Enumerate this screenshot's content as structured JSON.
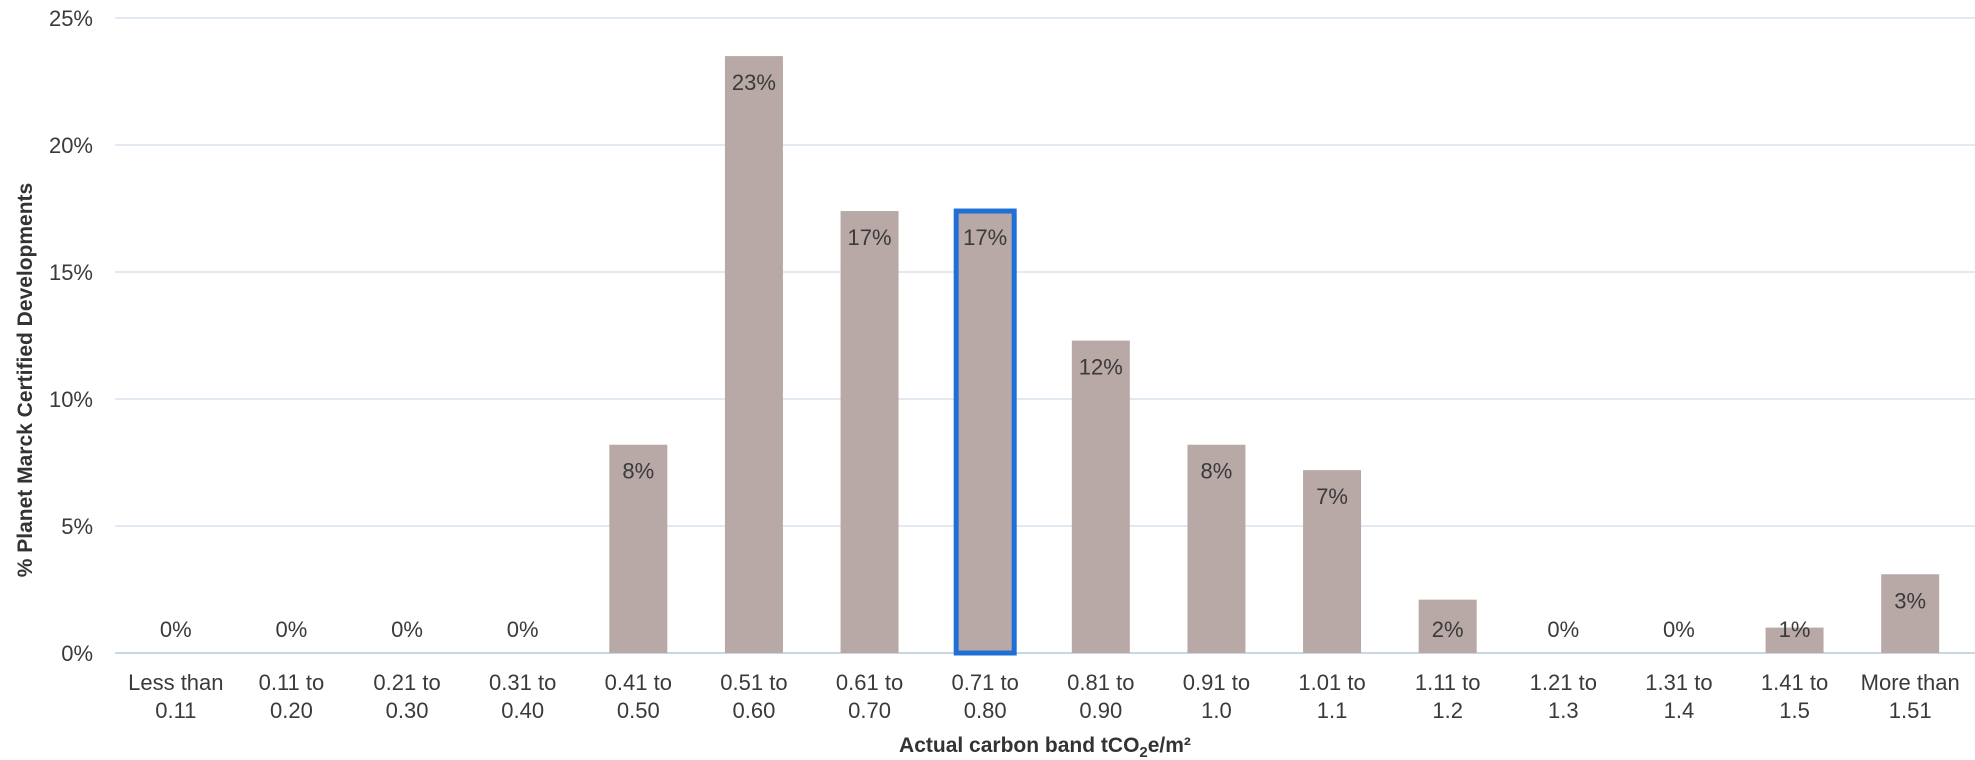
{
  "chart_data": {
    "type": "bar",
    "categories": [
      [
        "Less than",
        "0.11"
      ],
      [
        "0.11  to",
        "0.20"
      ],
      [
        "0.21  to",
        "0.30"
      ],
      [
        "0.31  to",
        "0.40"
      ],
      [
        "0.41  to",
        "0.50"
      ],
      [
        "0.51  to",
        "0.60"
      ],
      [
        "0.61  to",
        "0.70"
      ],
      [
        "0.71  to",
        "0.80"
      ],
      [
        "0.81  to",
        "0.90"
      ],
      [
        "0.91  to",
        "1.0"
      ],
      [
        "1.01  to",
        "1.1"
      ],
      [
        "1.11  to",
        "1.2"
      ],
      [
        "1.21  to",
        "1.3"
      ],
      [
        "1.31  to",
        "1.4"
      ],
      [
        "1.41  to",
        "1.5"
      ],
      [
        "More than",
        "1.51"
      ]
    ],
    "values": [
      0,
      0,
      0,
      0,
      8.2,
      23.5,
      17.4,
      17.4,
      12.3,
      8.2,
      7.2,
      2.1,
      0,
      0,
      1.0,
      3.1
    ],
    "data_labels": [
      "0%",
      "0%",
      "0%",
      "0%",
      "8%",
      "23%",
      "17%",
      "17%",
      "12%",
      "8%",
      "7%",
      "2%",
      "0%",
      "0%",
      "1%",
      "3%"
    ],
    "highlighted_index": 7,
    "ylim": [
      0,
      25
    ],
    "yticks": [
      0,
      5,
      10,
      15,
      20,
      25
    ],
    "ytick_labels": [
      "0%",
      "5%",
      "10%",
      "15%",
      "20%",
      "25%"
    ],
    "ylabel": "% Planet Marck Certified Developments",
    "xlabel_main": "Actual carbon band tCO",
    "xlabel_sub": "2",
    "xlabel_tail": "e/m²",
    "grid": true,
    "bar_color": "#b8a9a6",
    "highlight_color": "#1f6fd6",
    "grid_color": "#d9e2ec"
  }
}
